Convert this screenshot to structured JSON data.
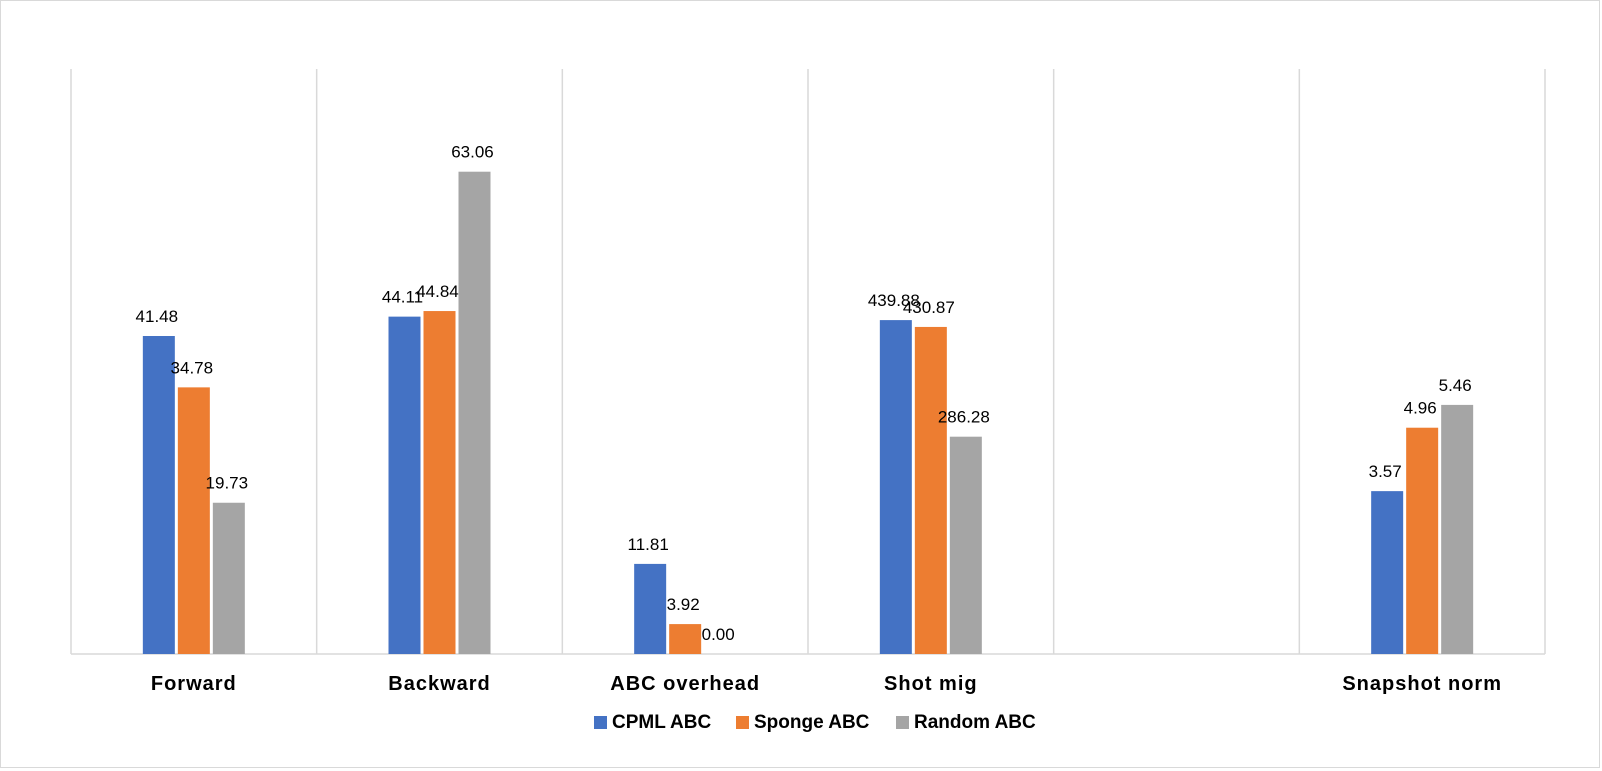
{
  "chart_data": {
    "type": "bar",
    "categories": [
      "Forward",
      "Backward",
      "ABC  overhead",
      "Shot  mig",
      "",
      "Snapshot  norm"
    ],
    "series": [
      {
        "name": "CPML ABC",
        "color": "#4472C4",
        "values": [
          41.48,
          44.11,
          11.81,
          439.88,
          null,
          3.57
        ]
      },
      {
        "name": "Sponge  ABC",
        "color": "#ED7D31",
        "values": [
          34.78,
          44.84,
          3.92,
          430.87,
          null,
          4.96
        ]
      },
      {
        "name": "Random ABC",
        "color": "#A5A5A5",
        "values": [
          19.73,
          63.06,
          0.0,
          286.28,
          null,
          5.46
        ]
      }
    ],
    "title": "",
    "xlabel": "",
    "ylabel": "",
    "legend_position": "bottom",
    "grid": "vertical category separators",
    "note": "Each category group is drawn on its own scale"
  }
}
